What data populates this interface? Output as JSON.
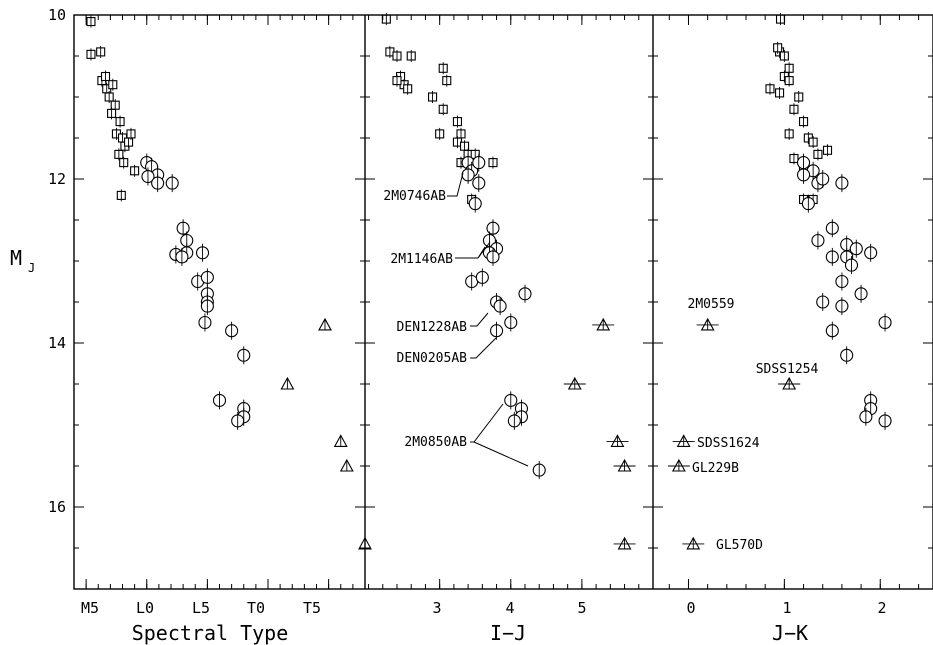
{
  "figure": {
    "ylabel_main": "M",
    "ylabel_sub": "J",
    "y_ticks": [
      "10",
      "12",
      "14",
      "16"
    ],
    "panels": [
      {
        "xlabel": "Spectral Type",
        "ticks": [
          "M5",
          "L0",
          "L5",
          "T0",
          "T5"
        ]
      },
      {
        "xlabel": "I−J",
        "ticks": [
          "3",
          "4",
          "5"
        ]
      },
      {
        "xlabel": "J−K",
        "ticks": [
          "0",
          "1",
          "2"
        ]
      }
    ]
  },
  "annotations": {
    "panel2": [
      "2M0746AB",
      "2M1146AB",
      "DEN1228AB",
      "DEN0205AB",
      "2M0850AB"
    ],
    "panel3": [
      "2M0559",
      "SDSS1254",
      "SDSS1624",
      "GL229B",
      "GL570D"
    ]
  },
  "chart_data": [
    {
      "type": "scatter",
      "title": "",
      "xlabel": "Spectral Type",
      "ylabel": "M_J",
      "y_inverted": true,
      "ylim": [
        10,
        17
      ],
      "x_ticks": [
        "M5",
        "L0",
        "L5",
        "T0",
        "T5"
      ],
      "x_tick_values": [
        -5,
        0,
        5,
        10,
        15
      ],
      "xlim": [
        -6,
        18
      ],
      "series": [
        {
          "marker": "square",
          "points": [
            [
              -4.6,
              10.08
            ],
            [
              -4.6,
              10.48
            ],
            [
              -3.8,
              10.45
            ],
            [
              -3.7,
              10.8
            ],
            [
              -3.3,
              10.9
            ],
            [
              -3.4,
              10.75
            ],
            [
              -2.8,
              10.85
            ],
            [
              -3.1,
              11.0
            ],
            [
              -2.6,
              11.1
            ],
            [
              -2.9,
              11.2
            ],
            [
              -2.2,
              11.3
            ],
            [
              -2.5,
              11.45
            ],
            [
              -2.0,
              11.5
            ],
            [
              -1.8,
              11.6
            ],
            [
              -2.3,
              11.7
            ],
            [
              -1.5,
              11.55
            ],
            [
              -1.9,
              11.8
            ],
            [
              -1.3,
              11.45
            ],
            [
              -1.0,
              11.9
            ],
            [
              -2.1,
              12.2
            ]
          ]
        },
        {
          "marker": "circle",
          "points": [
            [
              0.0,
              11.8
            ],
            [
              0.4,
              11.85
            ],
            [
              0.9,
              11.95
            ],
            [
              0.1,
              11.97
            ],
            [
              0.9,
              12.05
            ],
            [
              2.1,
              12.05
            ],
            [
              3.0,
              12.6
            ],
            [
              3.3,
              12.75
            ],
            [
              3.3,
              12.9
            ],
            [
              2.4,
              12.92
            ],
            [
              2.9,
              12.95
            ],
            [
              4.6,
              12.9
            ],
            [
              4.2,
              13.25
            ],
            [
              5.0,
              13.2
            ],
            [
              5.0,
              13.4
            ],
            [
              5.0,
              13.5
            ],
            [
              5.0,
              13.55
            ],
            [
              4.8,
              13.75
            ],
            [
              7.0,
              13.85
            ],
            [
              8.0,
              14.15
            ],
            [
              6.0,
              14.7
            ],
            [
              8.0,
              14.8
            ],
            [
              8.0,
              14.9
            ],
            [
              7.5,
              14.95
            ]
          ]
        },
        {
          "marker": "triangle",
          "points": [
            [
              14.7,
              13.78
            ],
            [
              11.6,
              14.5
            ],
            [
              16.0,
              15.2
            ],
            [
              16.5,
              15.5
            ],
            [
              18.0,
              16.45
            ]
          ]
        }
      ]
    },
    {
      "type": "scatter",
      "title": "",
      "xlabel": "I−J",
      "ylabel": "M_J",
      "y_inverted": true,
      "ylim": [
        10,
        17
      ],
      "x_ticks": [
        "3",
        "4",
        "5"
      ],
      "x_tick_values": [
        3,
        4,
        5
      ],
      "xlim": [
        1.95,
        6.0
      ],
      "series": [
        {
          "marker": "square",
          "points": [
            [
              2.25,
              10.05
            ],
            [
              2.3,
              10.45
            ],
            [
              2.4,
              10.5
            ],
            [
              2.6,
              10.5
            ],
            [
              2.45,
              10.75
            ],
            [
              2.5,
              10.85
            ],
            [
              2.55,
              10.9
            ],
            [
              2.4,
              10.8
            ],
            [
              2.9,
              11.0
            ],
            [
              3.05,
              10.65
            ],
            [
              3.1,
              10.8
            ],
            [
              3.05,
              11.15
            ],
            [
              3.25,
              11.3
            ],
            [
              3.3,
              11.45
            ],
            [
              3.25,
              11.55
            ],
            [
              3.35,
              11.6
            ],
            [
              3.4,
              11.7
            ],
            [
              3.5,
              11.7
            ],
            [
              3.3,
              11.8
            ],
            [
              3.0,
              11.45
            ],
            [
              3.55,
              11.8
            ],
            [
              3.75,
              11.8
            ],
            [
              3.45,
              12.25
            ]
          ]
        },
        {
          "marker": "circle",
          "points": [
            [
              3.4,
              11.8
            ],
            [
              3.45,
              11.9
            ],
            [
              3.55,
              11.8
            ],
            [
              3.4,
              11.95
            ],
            [
              3.55,
              12.05
            ],
            [
              3.5,
              12.3
            ],
            [
              3.75,
              12.6
            ],
            [
              3.7,
              12.75
            ],
            [
              3.8,
              12.85
            ],
            [
              3.7,
              12.9
            ],
            [
              3.75,
              12.95
            ],
            [
              3.45,
              13.25
            ],
            [
              3.6,
              13.2
            ],
            [
              4.2,
              13.4
            ],
            [
              3.8,
              13.5
            ],
            [
              3.85,
              13.55
            ],
            [
              4.0,
              13.75
            ],
            [
              3.8,
              13.85
            ],
            [
              4.0,
              14.7
            ],
            [
              4.15,
              14.8
            ],
            [
              4.15,
              14.9
            ],
            [
              4.05,
              14.95
            ],
            [
              4.4,
              15.55
            ]
          ]
        },
        {
          "marker": "triangle",
          "points": [
            [
              5.3,
              13.78
            ],
            [
              4.9,
              14.5
            ],
            [
              5.5,
              15.2
            ],
            [
              5.6,
              15.5
            ],
            [
              5.6,
              16.45
            ]
          ]
        }
      ]
    },
    {
      "type": "scatter",
      "title": "",
      "xlabel": "J−K",
      "ylabel": "M_J",
      "y_inverted": true,
      "ylim": [
        10,
        17
      ],
      "x_ticks": [
        "0",
        "1",
        "2"
      ],
      "x_tick_values": [
        0,
        1,
        2
      ],
      "xlim": [
        -0.37,
        2.55
      ],
      "series": [
        {
          "marker": "square",
          "points": [
            [
              0.96,
              10.05
            ],
            [
              0.95,
              10.45
            ],
            [
              1.0,
              10.5
            ],
            [
              0.93,
              10.4
            ],
            [
              1.05,
              10.65
            ],
            [
              1.0,
              10.75
            ],
            [
              0.85,
              10.9
            ],
            [
              1.05,
              10.8
            ],
            [
              0.95,
              10.95
            ],
            [
              1.15,
              11.0
            ],
            [
              1.1,
              11.15
            ],
            [
              1.2,
              11.3
            ],
            [
              1.05,
              11.45
            ],
            [
              1.25,
              11.5
            ],
            [
              1.3,
              11.55
            ],
            [
              1.35,
              11.7
            ],
            [
              1.45,
              11.65
            ],
            [
              1.2,
              11.85
            ],
            [
              1.1,
              11.75
            ],
            [
              1.3,
              12.25
            ],
            [
              1.2,
              12.25
            ]
          ]
        },
        {
          "marker": "circle",
          "points": [
            [
              1.2,
              11.8
            ],
            [
              1.3,
              11.9
            ],
            [
              1.2,
              11.95
            ],
            [
              1.35,
              12.05
            ],
            [
              1.4,
              12.0
            ],
            [
              1.6,
              12.05
            ],
            [
              1.25,
              12.3
            ],
            [
              1.5,
              12.6
            ],
            [
              1.35,
              12.75
            ],
            [
              1.65,
              12.8
            ],
            [
              1.75,
              12.85
            ],
            [
              1.9,
              12.9
            ],
            [
              1.65,
              12.95
            ],
            [
              1.5,
              12.95
            ],
            [
              1.7,
              13.05
            ],
            [
              1.6,
              13.25
            ],
            [
              1.8,
              13.4
            ],
            [
              1.4,
              13.5
            ],
            [
              1.6,
              13.55
            ],
            [
              2.05,
              13.75
            ],
            [
              1.5,
              13.85
            ],
            [
              1.65,
              14.15
            ],
            [
              1.9,
              14.7
            ],
            [
              1.9,
              14.8
            ],
            [
              1.85,
              14.9
            ],
            [
              2.05,
              14.95
            ]
          ]
        },
        {
          "marker": "triangle",
          "points": [
            [
              0.2,
              13.78
            ],
            [
              1.05,
              14.5
            ],
            [
              -0.05,
              15.2
            ],
            [
              -0.1,
              15.5
            ],
            [
              0.05,
              16.45
            ]
          ]
        }
      ]
    }
  ]
}
